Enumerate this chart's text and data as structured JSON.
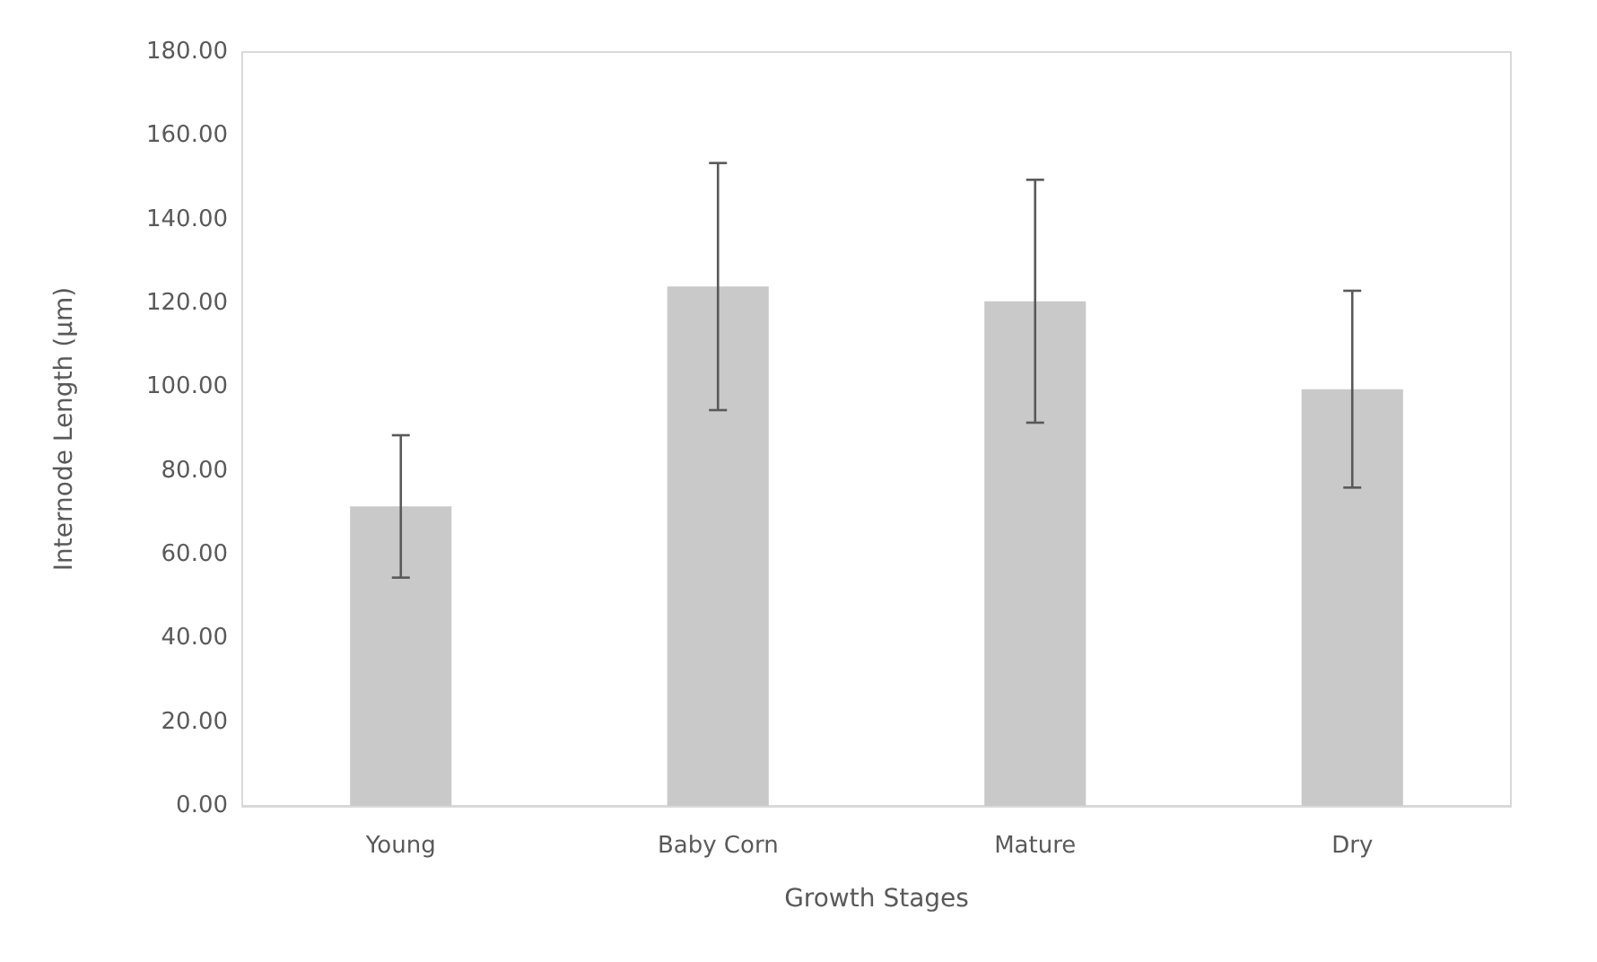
{
  "chart_data": {
    "type": "bar",
    "xlabel": "Growth Stages",
    "ylabel": "Internode Length (µm)",
    "categories": [
      "Young",
      "Baby Corn",
      "Mature",
      "Dry"
    ],
    "values": [
      71.5,
      124,
      120.5,
      99.5
    ],
    "errors": [
      17,
      29.5,
      29,
      23.5
    ],
    "color": "#c9c9c9",
    "ylim": [
      0,
      180
    ],
    "yticks": [
      {
        "value": 0,
        "label": "0.00"
      },
      {
        "value": 20,
        "label": "20.00"
      },
      {
        "value": 40,
        "label": "40.00"
      },
      {
        "value": 60,
        "label": "60.00"
      },
      {
        "value": 80,
        "label": "80.00"
      },
      {
        "value": 100,
        "label": "100.00"
      },
      {
        "value": 120,
        "label": "120.00"
      },
      {
        "value": 140,
        "label": "140.00"
      },
      {
        "value": 160,
        "label": "160.00"
      },
      {
        "value": 180,
        "label": "180.00"
      }
    ],
    "grid": false
  }
}
